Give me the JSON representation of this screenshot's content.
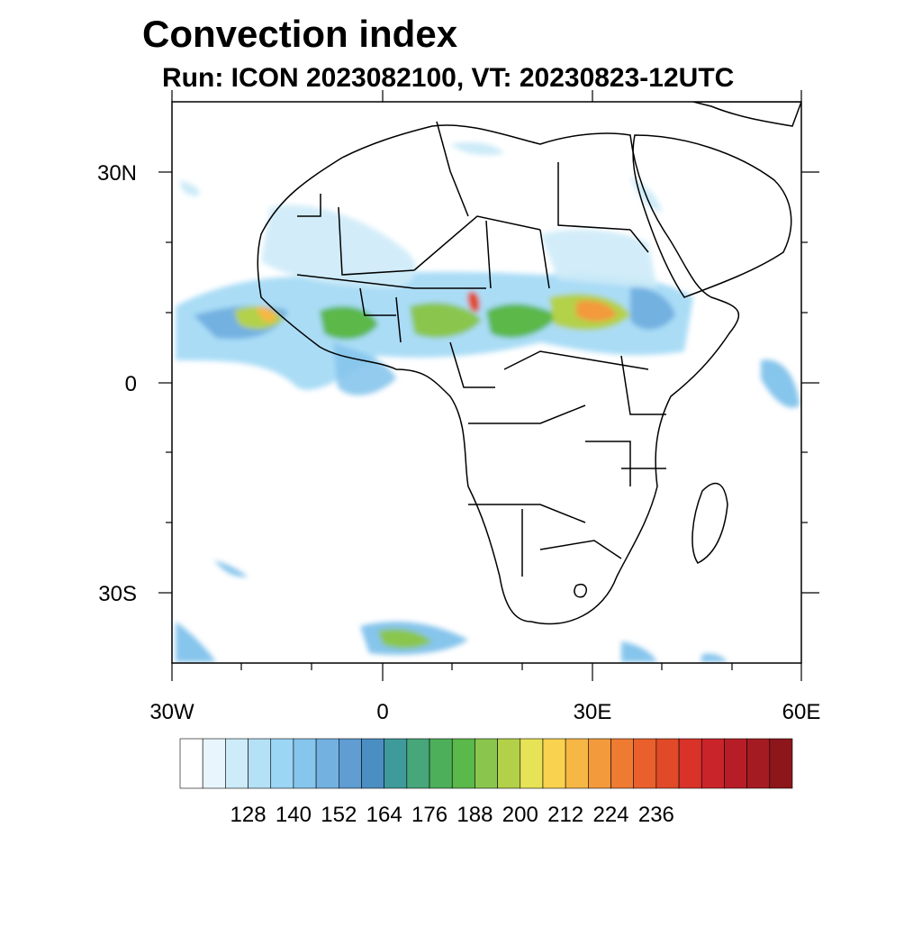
{
  "title": "Convection index",
  "subtitle": "Run: ICON 2023082100,  VT: 20230823-12UTC",
  "axes": {
    "lat_labels": [
      "30N",
      "0",
      "30S"
    ],
    "lon_labels": [
      "30W",
      "0",
      "30E",
      "60E"
    ]
  },
  "colorbar": {
    "labels": [
      "128",
      "140",
      "152",
      "164",
      "176",
      "188",
      "200",
      "212",
      "224",
      "236"
    ],
    "colors": [
      "#ffffff",
      "#e8f5fc",
      "#cdebf8",
      "#b5e1f6",
      "#9bd6f4",
      "#86c5ec",
      "#73b1e1",
      "#5f9dd3",
      "#4b8ec2",
      "#3f9a9b",
      "#47a67a",
      "#4daf5a",
      "#5bb84a",
      "#8ac64e",
      "#b3d148",
      "#e6e356",
      "#f9d24f",
      "#f6b745",
      "#f39a3c",
      "#ef7b33",
      "#e9602c",
      "#e04a28",
      "#d83229",
      "#c9242a",
      "#b71d27",
      "#a51b22",
      "#8c161a"
    ]
  },
  "icons": {
    "map": "map-of-africa-convection"
  }
}
